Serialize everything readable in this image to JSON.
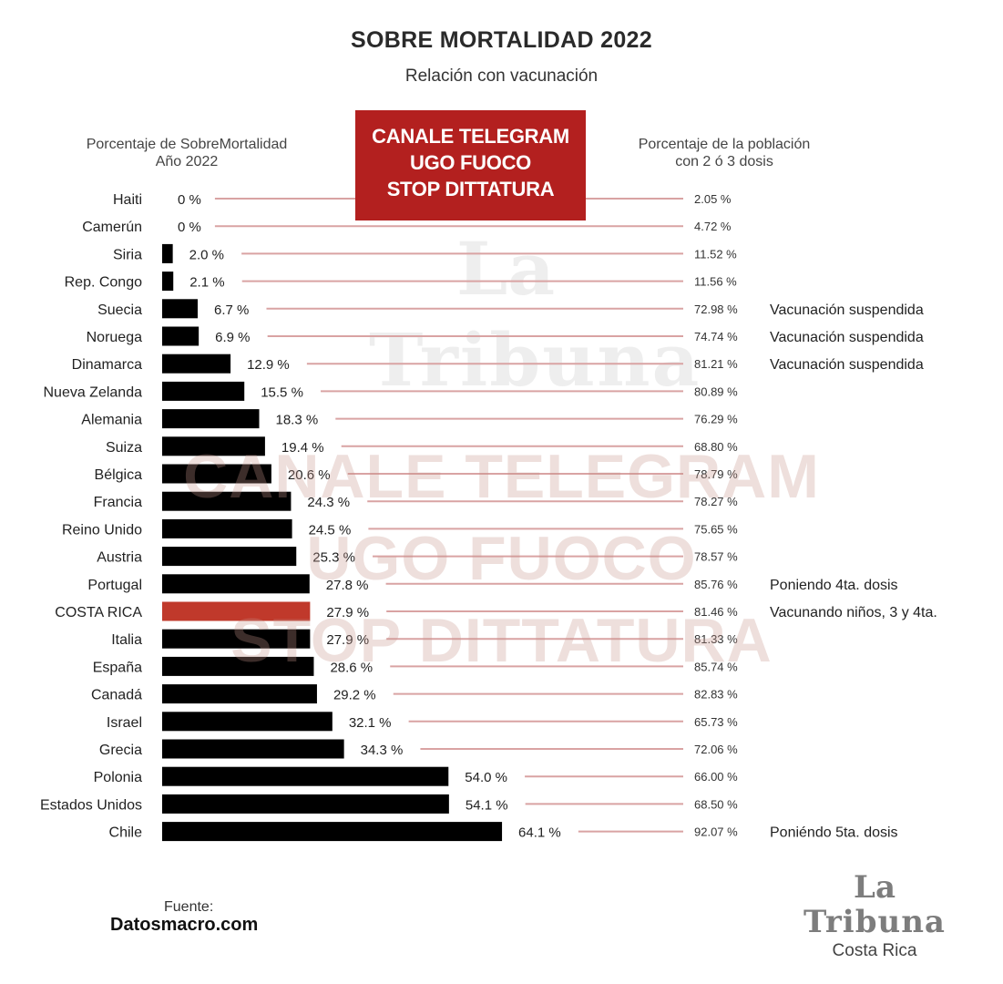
{
  "chart_data": {
    "type": "bar",
    "title": "SOBRE MORTALIDAD 2022",
    "subtitle": "Relación con vacunación",
    "left_header": [
      "Porcentaje de SobreMortalidad",
      "Año 2022"
    ],
    "right_header": [
      "Porcentaje de la población",
      "con 2 ó 3 dosis"
    ],
    "highlight_color": "#c0392b",
    "bar_color": "#000000",
    "line_color": "#d9a3a3",
    "categories": [
      "Haiti",
      "Camerún",
      "Siria",
      "Rep. Congo",
      "Suecia",
      "Noruega",
      "Dinamarca",
      "Nueva Zelanda",
      "Alemania",
      "Suiza",
      "Bélgica",
      "Francia",
      "Reino Unido",
      "Austria",
      "Portugal",
      "COSTA RICA",
      "Italia",
      "España",
      "Canadá",
      "Israel",
      "Grecia",
      "Polonia",
      "Estados Unidos",
      "Chile"
    ],
    "series": [
      {
        "values": [
          0,
          0,
          2.0,
          2.1,
          6.7,
          6.9,
          12.9,
          15.5,
          18.3,
          19.4,
          20.6,
          24.3,
          24.5,
          25.3,
          27.8,
          27.9,
          27.9,
          28.6,
          29.2,
          32.1,
          34.3,
          54.0,
          54.1,
          64.1
        ]
      },
      {
        "values": [
          2.05,
          4.72,
          11.52,
          11.56,
          72.98,
          74.74,
          81.21,
          80.89,
          76.29,
          68.8,
          78.79,
          78.27,
          75.65,
          78.57,
          85.76,
          81.46,
          81.33,
          85.74,
          82.83,
          65.73,
          72.06,
          66.0,
          68.5,
          92.07
        ]
      }
    ],
    "left_labels": [
      "0 %",
      "0 %",
      "2.0 %",
      "2.1 %",
      "6.7 %",
      "6.9 %",
      "12.9 %",
      "15.5 %",
      "18.3 %",
      "19.4 %",
      "20.6 %",
      "24.3 %",
      "24.5 %",
      "25.3 %",
      "27.8 %",
      "27.9 %",
      "27.9 %",
      "28.6 %",
      "29.2 %",
      "32.1 %",
      "34.3 %",
      "54.0 %",
      "54.1 %",
      "64.1 %"
    ],
    "right_labels": [
      "2.05 %",
      "4.72 %",
      "11.52 %",
      "11.56 %",
      "72.98 %",
      "74.74 %",
      "81.21 %",
      "80.89 %",
      "76.29 %",
      "68.80 %",
      "78.79 %",
      "78.27 %",
      "75.65 %",
      "78.57 %",
      "85.76 %",
      "81.46 %",
      "81.33 %",
      "85.74 %",
      "82.83 %",
      "65.73 %",
      "72.06 %",
      "66.00 %",
      "68.50 %",
      "92.07 %"
    ],
    "notes": [
      "",
      "",
      "",
      "",
      "Vacunación suspendida",
      "Vacunación suspendida",
      "Vacunación suspendida",
      "",
      "",
      "",
      "",
      "",
      "",
      "",
      "Poniendo 4ta. dosis",
      "Vacunando niños, 3 y 4ta.",
      "",
      "",
      "",
      "",
      "",
      "",
      "",
      "Poniéndo  5ta. dosis"
    ],
    "highlight_category": "COSTA RICA"
  },
  "overlay": {
    "banner": [
      "CANALE TELEGRAM",
      "UGO FUOCO",
      "STOP DITTATURA"
    ],
    "watermark": [
      "CANALE TELEGRAM",
      "UGO FUOCO",
      "STOP DITTATURA"
    ],
    "watermark_logo": [
      "La",
      "Tribuna"
    ]
  },
  "footer": {
    "source_label": "Fuente:",
    "source_value": "Datosmacro.com",
    "logo_line1": "La",
    "logo_line2": "Tribuna",
    "logo_line3": "Costa Rica"
  }
}
